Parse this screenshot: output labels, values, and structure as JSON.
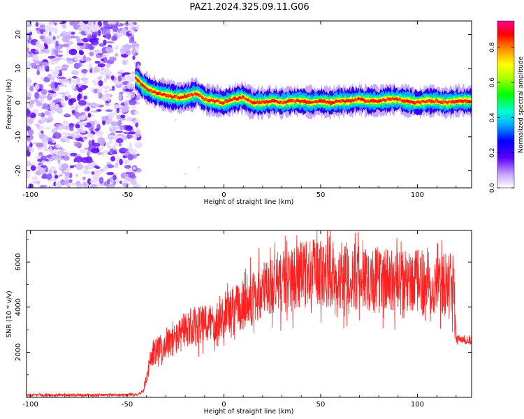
{
  "title": "PAZ1.2024.325.09.11.G06",
  "chart_data": [
    {
      "type": "heatmap",
      "xlabel": "Height of straight line (km)",
      "ylabel": "Frequency (Hz)",
      "xlim": [
        -102,
        128
      ],
      "ylim": [
        -25,
        24
      ],
      "xticks": [
        -100,
        -50,
        0,
        50,
        100
      ],
      "yticks": [
        -20,
        -10,
        0,
        10,
        20
      ],
      "xtick_labels": [
        "-100",
        "-50",
        "0",
        "50",
        "100"
      ],
      "ytick_labels": [
        "-20",
        "-10",
        "0",
        "10",
        "20"
      ],
      "colorbar": {
        "label": "Normalized spectral amplitude",
        "range": [
          0.0,
          0.95
        ],
        "ticks": [
          0.0,
          0.2,
          0.4,
          0.6,
          0.8
        ],
        "tick_labels": [
          "0.0",
          "0.2",
          "0.4",
          "0.6",
          "0.8"
        ]
      },
      "noise_region_x": [
        -102,
        -44
      ],
      "ridge": {
        "x": [
          -50,
          -45,
          -42,
          -38,
          -33,
          -28,
          -23,
          -18,
          -14,
          -10,
          -5,
          0,
          5,
          10,
          15,
          20,
          25,
          30,
          35,
          40,
          45,
          50,
          55,
          60,
          65,
          70,
          75,
          80,
          85,
          90,
          95,
          100,
          105,
          110,
          115,
          120,
          128
        ],
        "frequency_hz": [
          8,
          7,
          5,
          3.5,
          2.5,
          2,
          1.5,
          2,
          2.8,
          1,
          0.5,
          0,
          1,
          1.5,
          0,
          0,
          0.5,
          0,
          0.5,
          0.5,
          0,
          0.5,
          0,
          0.5,
          0.5,
          1,
          0.5,
          0.5,
          1,
          1,
          0.5,
          0,
          0.5,
          0.5,
          0,
          0.5,
          0.5
        ]
      },
      "grid": false
    },
    {
      "type": "line",
      "xlabel": "Height of straight line (km)",
      "ylabel": "SNR (10 * v/v)",
      "xlim": [
        -102,
        128
      ],
      "ylim": [
        0,
        7400
      ],
      "xticks": [
        -100,
        -50,
        0,
        50,
        100
      ],
      "yticks": [
        2000,
        4000,
        6000
      ],
      "xtick_labels": [
        "-100",
        "-50",
        "0",
        "50",
        "100"
      ],
      "ytick_labels": [
        "2000",
        "4000",
        "6000"
      ],
      "series": [
        {
          "color": "#ff2020",
          "x": [
            -102,
            -90,
            -80,
            -70,
            -60,
            -50,
            -45,
            -42,
            -40,
            -38,
            -35,
            -30,
            -25,
            -20,
            -15,
            -10,
            -5,
            0,
            5,
            10,
            15,
            20,
            25,
            30,
            35,
            40,
            45,
            50,
            55,
            60,
            65,
            70,
            75,
            80,
            85,
            90,
            95,
            100,
            105,
            110,
            115,
            119,
            120,
            125,
            128
          ],
          "values": [
            100,
            100,
            110,
            100,
            110,
            120,
            130,
            250,
            800,
            1700,
            2100,
            2300,
            2600,
            2900,
            3100,
            3200,
            3400,
            3600,
            3900,
            4100,
            4400,
            4700,
            5000,
            5100,
            5200,
            5400,
            5500,
            5500,
            5500,
            5400,
            5400,
            5300,
            5300,
            5200,
            5200,
            5100,
            5100,
            5100,
            5100,
            5000,
            5000,
            5000,
            2600,
            2550,
            2500
          ]
        }
      ],
      "grid": false
    }
  ]
}
